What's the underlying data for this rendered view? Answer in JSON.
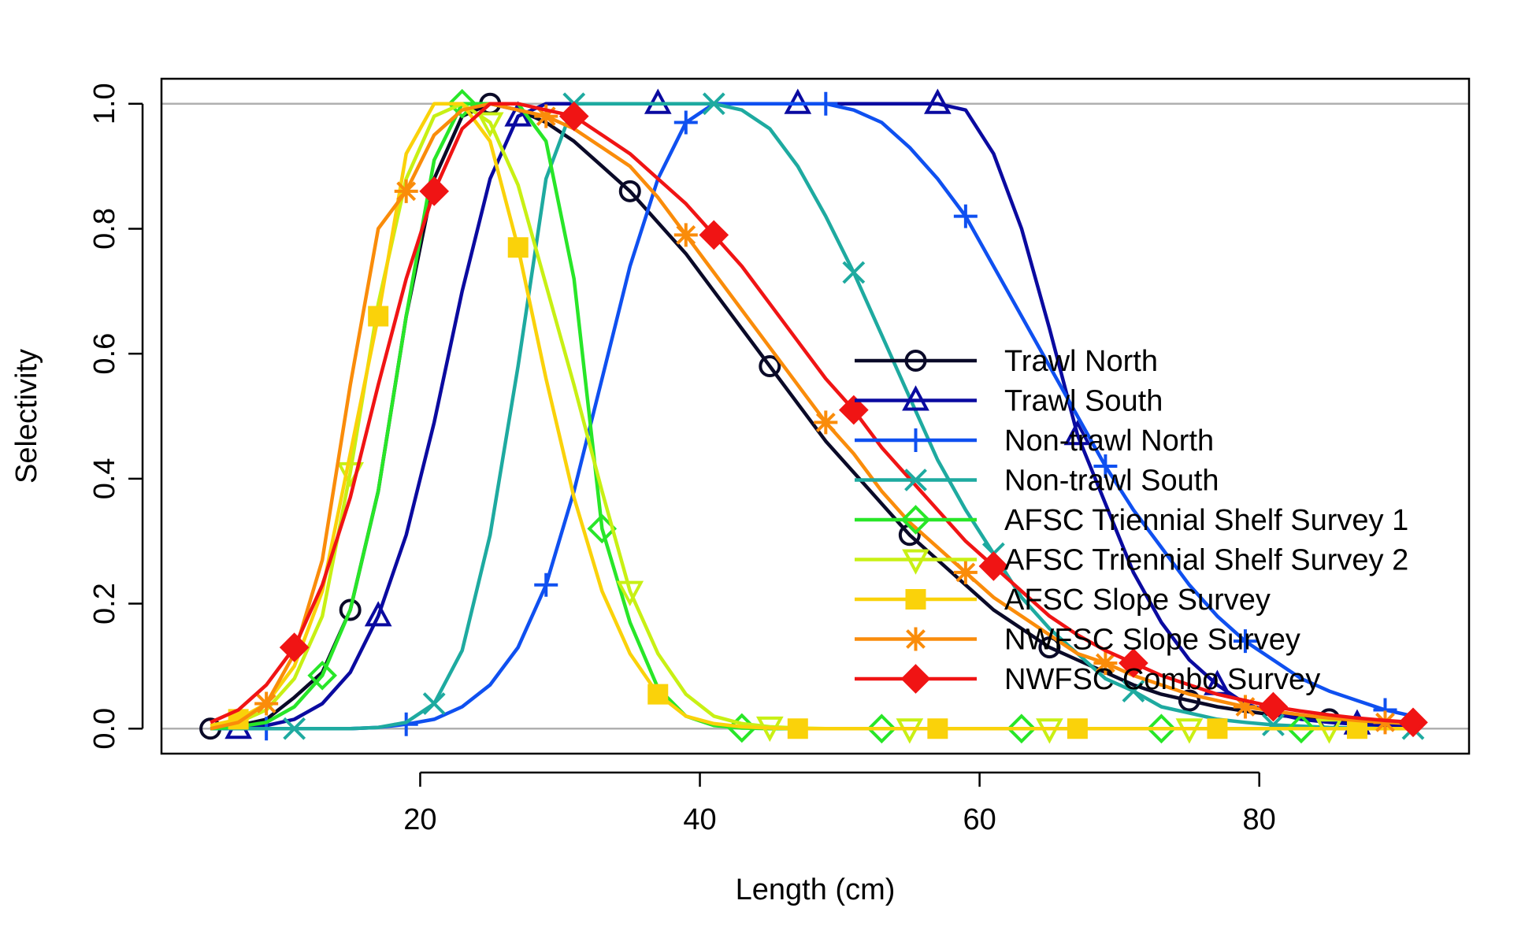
{
  "chart_data": {
    "type": "line",
    "xlabel": "Length (cm)",
    "ylabel": "Selectivity",
    "xlim": [
      1.5,
      95
    ],
    "ylim": [
      -0.04,
      1.04
    ],
    "x_ticks": [
      20,
      40,
      60,
      80
    ],
    "y_ticks": [
      0.0,
      0.2,
      0.4,
      0.6,
      0.8,
      1.0
    ],
    "x_tick_labels": [
      "20",
      "40",
      "60",
      "80"
    ],
    "y_tick_labels": [
      "0.0",
      "0.2",
      "0.4",
      "0.6",
      "0.8",
      "1.0"
    ],
    "reference_lines": [
      0,
      1
    ],
    "reference_line_color": "#b0b0b0",
    "legend_position": "center-right",
    "x": [
      5,
      7,
      9,
      11,
      13,
      15,
      17,
      19,
      21,
      23,
      25,
      27,
      29,
      31,
      33,
      35,
      37,
      39,
      41,
      43,
      45,
      47,
      49,
      51,
      53,
      55,
      57,
      59,
      61,
      63,
      65,
      67,
      69,
      71,
      73,
      75,
      77,
      79,
      81,
      83,
      85,
      87,
      89,
      91
    ],
    "series": [
      {
        "name": "Trawl North",
        "color": "#0a0a28",
        "marker": "circle",
        "marker_offset": 0,
        "values": [
          0.0,
          0.005,
          0.015,
          0.05,
          0.09,
          0.19,
          0.38,
          0.66,
          0.88,
          0.98,
          1.0,
          0.99,
          0.97,
          0.94,
          0.9,
          0.86,
          0.81,
          0.76,
          0.7,
          0.64,
          0.58,
          0.52,
          0.46,
          0.41,
          0.36,
          0.31,
          0.27,
          0.23,
          0.19,
          0.16,
          0.13,
          0.11,
          0.09,
          0.07,
          0.055,
          0.045,
          0.035,
          0.028,
          0.022,
          0.018,
          0.015,
          0.012,
          0.01,
          0.008
        ]
      },
      {
        "name": "Trawl South",
        "color": "#0a0aa0",
        "marker": "triangle",
        "marker_offset": 1,
        "values": [
          0.0,
          0.0,
          0.005,
          0.015,
          0.04,
          0.09,
          0.18,
          0.31,
          0.49,
          0.7,
          0.88,
          0.98,
          1.0,
          1.0,
          1.0,
          1.0,
          1.0,
          1.0,
          1.0,
          1.0,
          1.0,
          1.0,
          1.0,
          1.0,
          1.0,
          1.0,
          1.0,
          0.99,
          0.92,
          0.8,
          0.64,
          0.47,
          0.36,
          0.25,
          0.17,
          0.11,
          0.07,
          0.04,
          0.025,
          0.015,
          0.01,
          0.007,
          0.005,
          0.003
        ]
      },
      {
        "name": "Non-trawl North",
        "color": "#0f50f0",
        "marker": "plus",
        "marker_offset": 2,
        "values": [
          0.0,
          0.0,
          0.0,
          0.0,
          0.0,
          0.0,
          0.002,
          0.007,
          0.015,
          0.035,
          0.07,
          0.13,
          0.23,
          0.38,
          0.56,
          0.74,
          0.88,
          0.97,
          1.0,
          1.0,
          1.0,
          1.0,
          1.0,
          0.99,
          0.97,
          0.93,
          0.88,
          0.82,
          0.74,
          0.66,
          0.58,
          0.5,
          0.42,
          0.35,
          0.29,
          0.23,
          0.18,
          0.14,
          0.11,
          0.08,
          0.06,
          0.045,
          0.03,
          0.02
        ]
      },
      {
        "name": "Non-trawl South",
        "color": "#1eaaa0",
        "marker": "x",
        "marker_offset": 3,
        "values": [
          0.0,
          0.0,
          0.0,
          0.0,
          0.0,
          0.0,
          0.002,
          0.01,
          0.04,
          0.125,
          0.31,
          0.58,
          0.88,
          1.0,
          1.0,
          1.0,
          1.0,
          1.0,
          1.0,
          0.99,
          0.96,
          0.9,
          0.82,
          0.73,
          0.63,
          0.53,
          0.43,
          0.35,
          0.28,
          0.21,
          0.16,
          0.12,
          0.08,
          0.06,
          0.035,
          0.025,
          0.015,
          0.01,
          0.006,
          0.004,
          0.002,
          0.001,
          0.0,
          0.0
        ]
      },
      {
        "name": "AFSC Triennial Shelf Survey 1",
        "color": "#28e628",
        "marker": "diamond",
        "marker_offset": 4,
        "values": [
          0.0,
          0.003,
          0.01,
          0.035,
          0.085,
          0.19,
          0.38,
          0.66,
          0.91,
          1.0,
          1.0,
          1.0,
          0.94,
          0.72,
          0.32,
          0.17,
          0.065,
          0.02,
          0.005,
          0.001,
          0.0,
          0.0,
          0.0,
          0.0,
          0.0,
          0.0,
          0.0,
          0.0,
          0.0,
          0.0,
          0.0,
          0.0,
          0.0,
          0.0,
          0.0,
          0.0,
          0.0,
          0.0,
          0.0,
          0.0,
          0.0,
          0.0,
          0.0,
          0.0
        ]
      },
      {
        "name": "AFSC Triennial Shelf Survey 2",
        "color": "#c8f014",
        "marker": "triangle-down",
        "marker_offset": 5,
        "values": [
          0.005,
          0.01,
          0.03,
          0.08,
          0.18,
          0.41,
          0.68,
          0.88,
          0.98,
          1.0,
          0.97,
          0.87,
          0.71,
          0.55,
          0.38,
          0.22,
          0.12,
          0.055,
          0.02,
          0.008,
          0.003,
          0.001,
          0.0,
          0.0,
          0.0,
          0.0,
          0.0,
          0.0,
          0.0,
          0.0,
          0.0,
          0.0,
          0.0,
          0.0,
          0.0,
          0.0,
          0.0,
          0.0,
          0.0,
          0.0,
          0.0,
          0.0,
          0.0,
          0.0
        ]
      },
      {
        "name": "AFSC Slope Survey",
        "color": "#fad20a",
        "marker": "square",
        "marker_offset": 6,
        "values": [
          0.005,
          0.015,
          0.04,
          0.1,
          0.22,
          0.44,
          0.66,
          0.92,
          1.0,
          1.0,
          0.94,
          0.77,
          0.56,
          0.37,
          0.22,
          0.12,
          0.055,
          0.02,
          0.008,
          0.003,
          0.001,
          0.0,
          0.0,
          0.0,
          0.0,
          0.0,
          0.0,
          0.0,
          0.0,
          0.0,
          0.0,
          0.0,
          0.0,
          0.0,
          0.0,
          0.0,
          0.0,
          0.0,
          0.0,
          0.0,
          0.0,
          0.0,
          0.0,
          0.0
        ]
      },
      {
        "name": "NWFSC Slope Survey",
        "color": "#fa8c0a",
        "marker": "asterisk",
        "marker_offset": 7,
        "values": [
          0.0,
          0.01,
          0.04,
          0.12,
          0.27,
          0.55,
          0.8,
          0.86,
          0.95,
          0.99,
          1.0,
          0.99,
          0.98,
          0.96,
          0.93,
          0.9,
          0.85,
          0.79,
          0.73,
          0.67,
          0.61,
          0.55,
          0.49,
          0.44,
          0.38,
          0.33,
          0.29,
          0.25,
          0.21,
          0.18,
          0.15,
          0.12,
          0.105,
          0.085,
          0.07,
          0.055,
          0.045,
          0.035,
          0.028,
          0.022,
          0.017,
          0.013,
          0.01,
          0.008
        ]
      },
      {
        "name": "NWFSC Combo Survey",
        "color": "#f01414",
        "marker": "diamond-filled",
        "marker_offset": 8,
        "values": [
          0.01,
          0.03,
          0.07,
          0.13,
          0.23,
          0.37,
          0.55,
          0.72,
          0.86,
          0.96,
          1.0,
          1.0,
          0.99,
          0.98,
          0.95,
          0.92,
          0.88,
          0.84,
          0.79,
          0.74,
          0.68,
          0.62,
          0.56,
          0.51,
          0.45,
          0.4,
          0.35,
          0.3,
          0.26,
          0.22,
          0.18,
          0.15,
          0.125,
          0.105,
          0.085,
          0.07,
          0.055,
          0.045,
          0.035,
          0.028,
          0.022,
          0.017,
          0.013,
          0.01
        ]
      }
    ]
  }
}
